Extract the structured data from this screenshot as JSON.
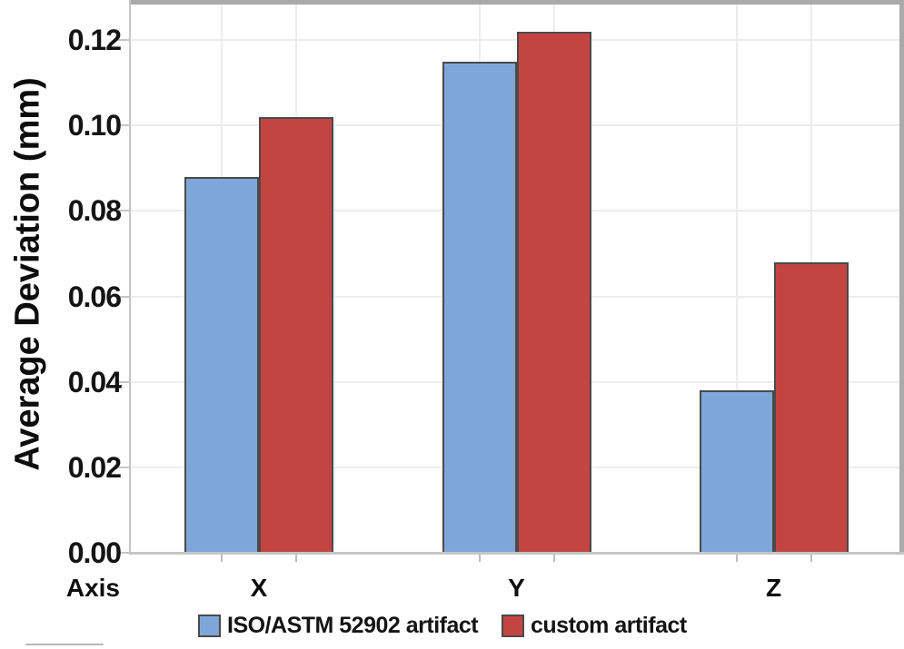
{
  "chart_data": {
    "type": "bar",
    "title": "",
    "categories": [
      "X",
      "Y",
      "Z"
    ],
    "series": [
      {
        "name": "ISO/ASTM 52902 artifact",
        "color": "#7FA6D9",
        "values": [
          0.088,
          0.115,
          0.038
        ]
      },
      {
        "name": "custom artifact",
        "color": "#C44442",
        "values": [
          0.102,
          0.122,
          0.068
        ]
      }
    ],
    "xlabel": "Axis",
    "ylabel": "Average Deviation (mm)",
    "ylim": [
      0,
      0.1287
    ],
    "yticks": [
      0,
      0.02,
      0.04,
      0.06,
      0.08,
      0.1,
      0.12
    ],
    "ytick_labels": [
      "0.00",
      "0.02",
      "0.04",
      "0.06",
      "0.08",
      "0.10",
      "0.12"
    ],
    "grid": true,
    "legend_position": "bottom",
    "bar_border_color": "#4a4a4a"
  }
}
